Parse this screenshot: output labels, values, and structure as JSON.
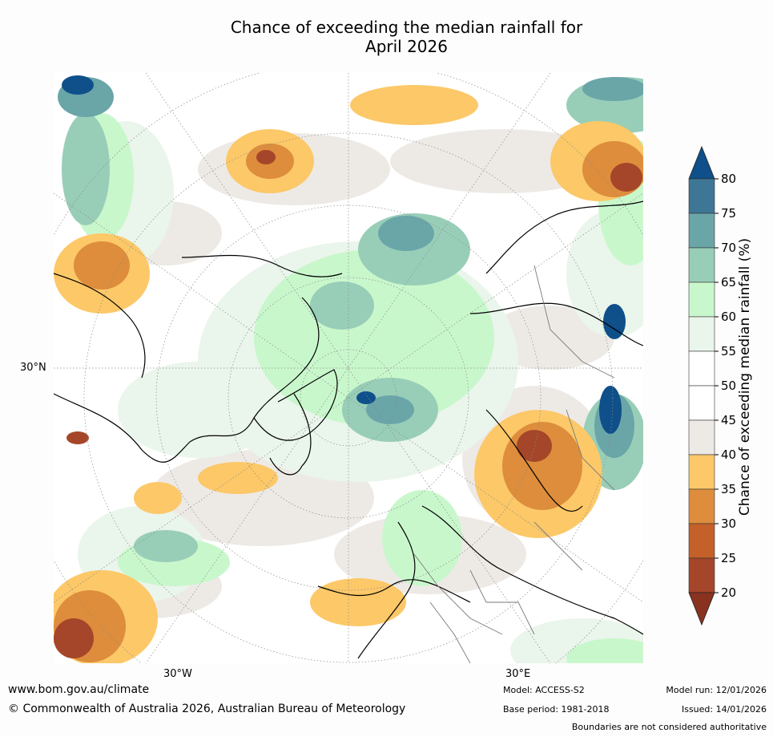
{
  "title_line1": "Chance of exceeding the median rainfall for",
  "title_line2": "April 2026",
  "map": {
    "lat_labels": [
      "30°N"
    ],
    "lon_labels": [
      "30°W",
      "30°E"
    ]
  },
  "colorbar": {
    "label": "Chance of exceeding median rainfall (%)",
    "ticks": [
      "80",
      "75",
      "70",
      "65",
      "60",
      "55",
      "50",
      "45",
      "40",
      "35",
      "30",
      "25",
      "20"
    ],
    "colors": [
      "#0f4f8a",
      "#3e7696",
      "#6aa5a8",
      "#98ceb8",
      "#c9f7cc",
      "#eaf5eb",
      "#ffffff",
      "#ffffff",
      "#edeae6",
      "#fcc868",
      "#dd8d3c",
      "#c4602a",
      "#a5462a",
      "#8a3220"
    ]
  },
  "footer": {
    "website": "www.bom.gov.au/climate",
    "copyright": "© Commonwealth of Australia 2026, Australian Bureau of Meteorology",
    "model": "Model: ACCESS-S2",
    "base_period": "Base period: 1981-2018",
    "model_run": "Model run: 12/01/2026",
    "issued": "Issued: 14/01/2026",
    "disclaimer": "Boundaries are not considered authoritative"
  }
}
